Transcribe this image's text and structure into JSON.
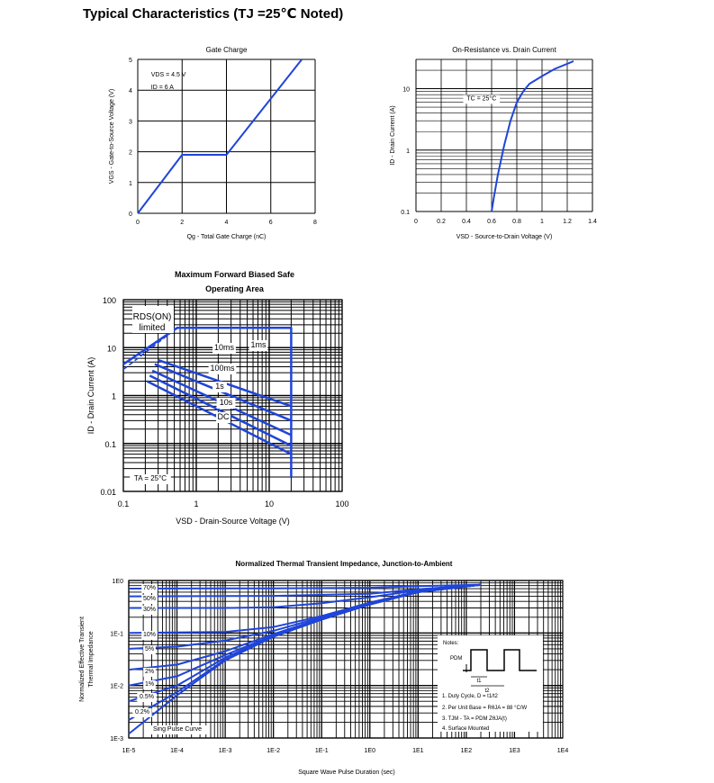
{
  "page_title": "Typical Characteristics (TJ =25℃ Noted)",
  "colors": {
    "curve": "#1f45d9",
    "grid": "#000000"
  },
  "chart_data": [
    {
      "type": "line",
      "title": "Gate Charge",
      "xlabel": "Qg - Total Gate Charge (nC)",
      "ylabel": "VGS - Gate-to-Source Voltage (V)",
      "xlim": [
        0,
        8
      ],
      "ylim": [
        0,
        5
      ],
      "x_ticks": [
        "0",
        "2",
        "4",
        "6",
        "8"
      ],
      "y_ticks": [
        "0",
        "1",
        "2",
        "3",
        "4",
        "5"
      ],
      "annotations": [
        "VDS = 4.5 V",
        "ID = 6 A"
      ],
      "series": [
        {
          "x": [
            0,
            2,
            4,
            7.4
          ],
          "y": [
            0,
            1.9,
            1.9,
            5
          ]
        }
      ]
    },
    {
      "type": "line",
      "title": "On-Resistance vs. Drain Current",
      "xlabel": "VSD - Source-to-Drain Voltage (V)",
      "ylabel": "ID - Drain Current (A)",
      "xlim": [
        0,
        1.4
      ],
      "ylim": [
        0.1,
        30
      ],
      "yscale": "log",
      "x_ticks": [
        "0",
        "0.2",
        "0.4",
        "0.6",
        "0.8",
        "1",
        "1.2",
        "1.4"
      ],
      "y_ticks": [
        "0.1",
        "1",
        "10"
      ],
      "annotations": [
        "TC = 25°C"
      ],
      "series": [
        {
          "x": [
            0.6,
            0.62,
            0.65,
            0.7,
            0.75,
            0.8,
            0.85,
            0.9,
            1.0,
            1.1,
            1.25
          ],
          "y": [
            0.1,
            0.18,
            0.4,
            1.2,
            3.0,
            6.0,
            9.0,
            12.0,
            16.0,
            21.0,
            28.0
          ]
        }
      ]
    },
    {
      "type": "line",
      "title": "Maximum Forward Biased Safe Operating Area",
      "xlabel": "VSD - Drain-Source Voltage (V)",
      "ylabel": "ID - Drain Current (A)",
      "xscale": "log",
      "yscale": "log",
      "xlim": [
        0.1,
        100
      ],
      "ylim": [
        0.01,
        100
      ],
      "x_ticks": [
        "0.1",
        "1",
        "10",
        "100"
      ],
      "y_ticks": [
        "0.01",
        "0.1",
        "1",
        "10",
        "100"
      ],
      "labels": [
        "RDS(ON) limited",
        "1ms",
        "10ms",
        "100ms",
        "1s",
        "10s",
        "DC",
        "TA = 25°C"
      ],
      "series": [
        {
          "name": "1ms",
          "x": [
            0.1,
            0.55,
            0.55,
            20,
            20
          ],
          "y": [
            4.5,
            26,
            26,
            26,
            0.02
          ]
        },
        {
          "name": "10ms",
          "x": [
            0.3,
            20
          ],
          "y": [
            5.5,
            0.6
          ]
        },
        {
          "name": "100ms",
          "x": [
            0.27,
            20
          ],
          "y": [
            4.5,
            0.3
          ]
        },
        {
          "name": "1s",
          "x": [
            0.25,
            20
          ],
          "y": [
            3.3,
            0.15
          ]
        },
        {
          "name": "10s",
          "x": [
            0.23,
            20
          ],
          "y": [
            2.6,
            0.09
          ]
        },
        {
          "name": "DC",
          "x": [
            0.21,
            20
          ],
          "y": [
            2.0,
            0.06
          ]
        }
      ]
    },
    {
      "type": "line",
      "title": "Normalized Thermal Transient Impedance, Junction-to-Ambient",
      "xlabel": "Square Wave Pulse Duration (sec)",
      "ylabel": "Normalized Effective Transient Thermal Impedance",
      "xscale": "log",
      "yscale": "log",
      "xlim": [
        1e-05,
        10000.0
      ],
      "ylim": [
        0.001,
        1
      ],
      "x_ticks": [
        "1E-5",
        "1E-4",
        "1E-3",
        "1E-2",
        "1E-1",
        "1E0",
        "1E1",
        "1E2",
        "1E3",
        "1E4"
      ],
      "y_ticks": [
        "1E-3",
        "1E-2",
        "1E-1",
        "1E0"
      ],
      "series_labels": [
        "70%",
        "50%",
        "30%",
        "10%",
        "5%",
        "2%",
        "1%",
        "0.5%",
        "0.2%",
        "Sing Pulse Curve"
      ],
      "notes": [
        "Notes:",
        "PDM",
        "t1",
        "t2",
        "1. Duty Cycle, D = t1/t2",
        "2. Per Unit Base = RθJA = 88 °C/W",
        "3. TJM - TA = PDM ZθJA(t)",
        "4. Surface Mounted"
      ],
      "series": [
        {
          "name": "70%",
          "x": [
            1e-05,
            0.01,
            1,
            10,
            200
          ],
          "y": [
            0.7,
            0.71,
            0.73,
            0.78,
            0.83
          ]
        },
        {
          "name": "50%",
          "x": [
            1e-05,
            0.01,
            1,
            10,
            200
          ],
          "y": [
            0.5,
            0.51,
            0.56,
            0.68,
            0.83
          ]
        },
        {
          "name": "30%",
          "x": [
            1e-05,
            0.001,
            0.01,
            0.1,
            1,
            10,
            200
          ],
          "y": [
            0.3,
            0.3,
            0.31,
            0.37,
            0.48,
            0.65,
            0.83
          ]
        },
        {
          "name": "10%",
          "x": [
            1e-05,
            0.001,
            0.01,
            0.1,
            1,
            10,
            200
          ],
          "y": [
            0.1,
            0.105,
            0.13,
            0.21,
            0.38,
            0.62,
            0.83
          ]
        },
        {
          "name": "5%",
          "x": [
            1e-05,
            0.0001,
            0.001,
            0.01,
            0.1,
            1,
            10,
            200
          ],
          "y": [
            0.05,
            0.055,
            0.072,
            0.11,
            0.2,
            0.37,
            0.61,
            0.83
          ]
        },
        {
          "name": "2%",
          "x": [
            1e-05,
            0.0001,
            0.001,
            0.01,
            0.1,
            1,
            10,
            200
          ],
          "y": [
            0.02,
            0.025,
            0.045,
            0.095,
            0.19,
            0.36,
            0.6,
            0.83
          ]
        },
        {
          "name": "1%",
          "x": [
            1e-05,
            0.0001,
            0.001,
            0.01,
            0.1,
            1,
            10,
            200
          ],
          "y": [
            0.01,
            0.015,
            0.038,
            0.09,
            0.185,
            0.355,
            0.6,
            0.83
          ]
        },
        {
          "name": "0.5%",
          "x": [
            1e-05,
            0.0001,
            0.001,
            0.01,
            0.1,
            1,
            10,
            200
          ],
          "y": [
            0.005,
            0.01,
            0.034,
            0.088,
            0.18,
            0.35,
            0.6,
            0.83
          ]
        },
        {
          "name": "0.2%",
          "x": [
            1e-05,
            0.0001,
            0.001,
            0.01,
            0.1,
            1,
            10,
            200
          ],
          "y": [
            0.0022,
            0.0075,
            0.031,
            0.086,
            0.18,
            0.35,
            0.6,
            0.83
          ]
        },
        {
          "name": "Sing Pulse Curve",
          "x": [
            1e-05,
            0.0001,
            0.001,
            0.01,
            0.1,
            1,
            10,
            200
          ],
          "y": [
            0.0012,
            0.0065,
            0.03,
            0.085,
            0.18,
            0.35,
            0.6,
            0.83
          ]
        }
      ]
    }
  ]
}
